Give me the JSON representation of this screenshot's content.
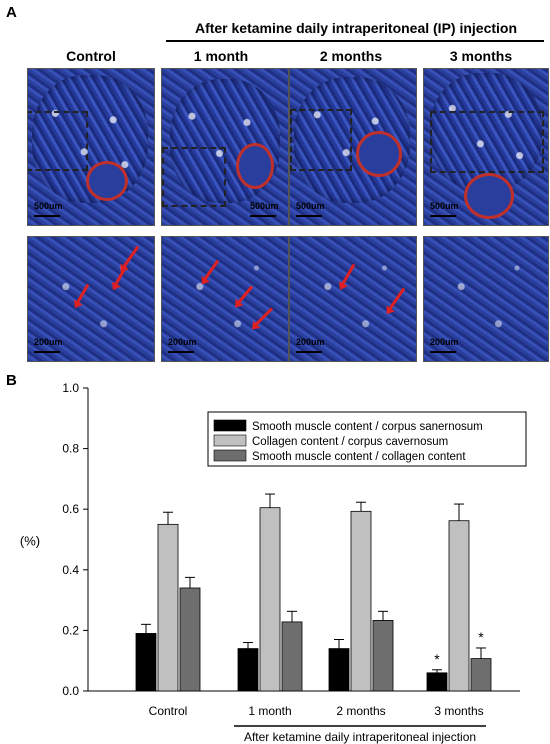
{
  "panel_a_letter": "A",
  "panel_b_letter": "B",
  "top_header": "After ketamine daily intraperitoneal (IP) injection",
  "columns": [
    "Control",
    "1 month",
    "2 months",
    "3 months"
  ],
  "scale_top": "500um",
  "scale_bottom": "200um",
  "chart_data": {
    "type": "bar",
    "categories": [
      "Control",
      "1 month",
      "2 months",
      "3 months"
    ],
    "series": [
      {
        "name": "Smooth muscle content / corpus sanernosum",
        "values": [
          0.19,
          0.14,
          0.14,
          0.06
        ],
        "errors": [
          0.03,
          0.02,
          0.03,
          0.01
        ],
        "color": "#000000"
      },
      {
        "name": "Collagen content / corpus cavernosum",
        "values": [
          0.55,
          0.605,
          0.593,
          0.562
        ],
        "errors": [
          0.04,
          0.045,
          0.03,
          0.055
        ],
        "color": "#c0c0c0"
      },
      {
        "name": "Smooth muscle content / collagen content",
        "values": [
          0.34,
          0.228,
          0.233,
          0.107
        ],
        "errors": [
          0.035,
          0.035,
          0.03,
          0.035
        ],
        "color": "#6e6e6e"
      }
    ],
    "significance": [
      {
        "category": "3 months",
        "series": "Smooth muscle content / corpus sanernosum",
        "mark": "*"
      },
      {
        "category": "3 months",
        "series": "Smooth muscle content / collagen content",
        "mark": "*"
      }
    ],
    "ylabel": "(%)",
    "ylim": [
      0,
      1.0
    ],
    "yticks": [
      "0.0",
      "0.2",
      "0.4",
      "0.6",
      "0.8",
      "1.0"
    ],
    "group_caption": "After ketamine daily intraperitoneal injection",
    "legend_position": "top-right"
  }
}
